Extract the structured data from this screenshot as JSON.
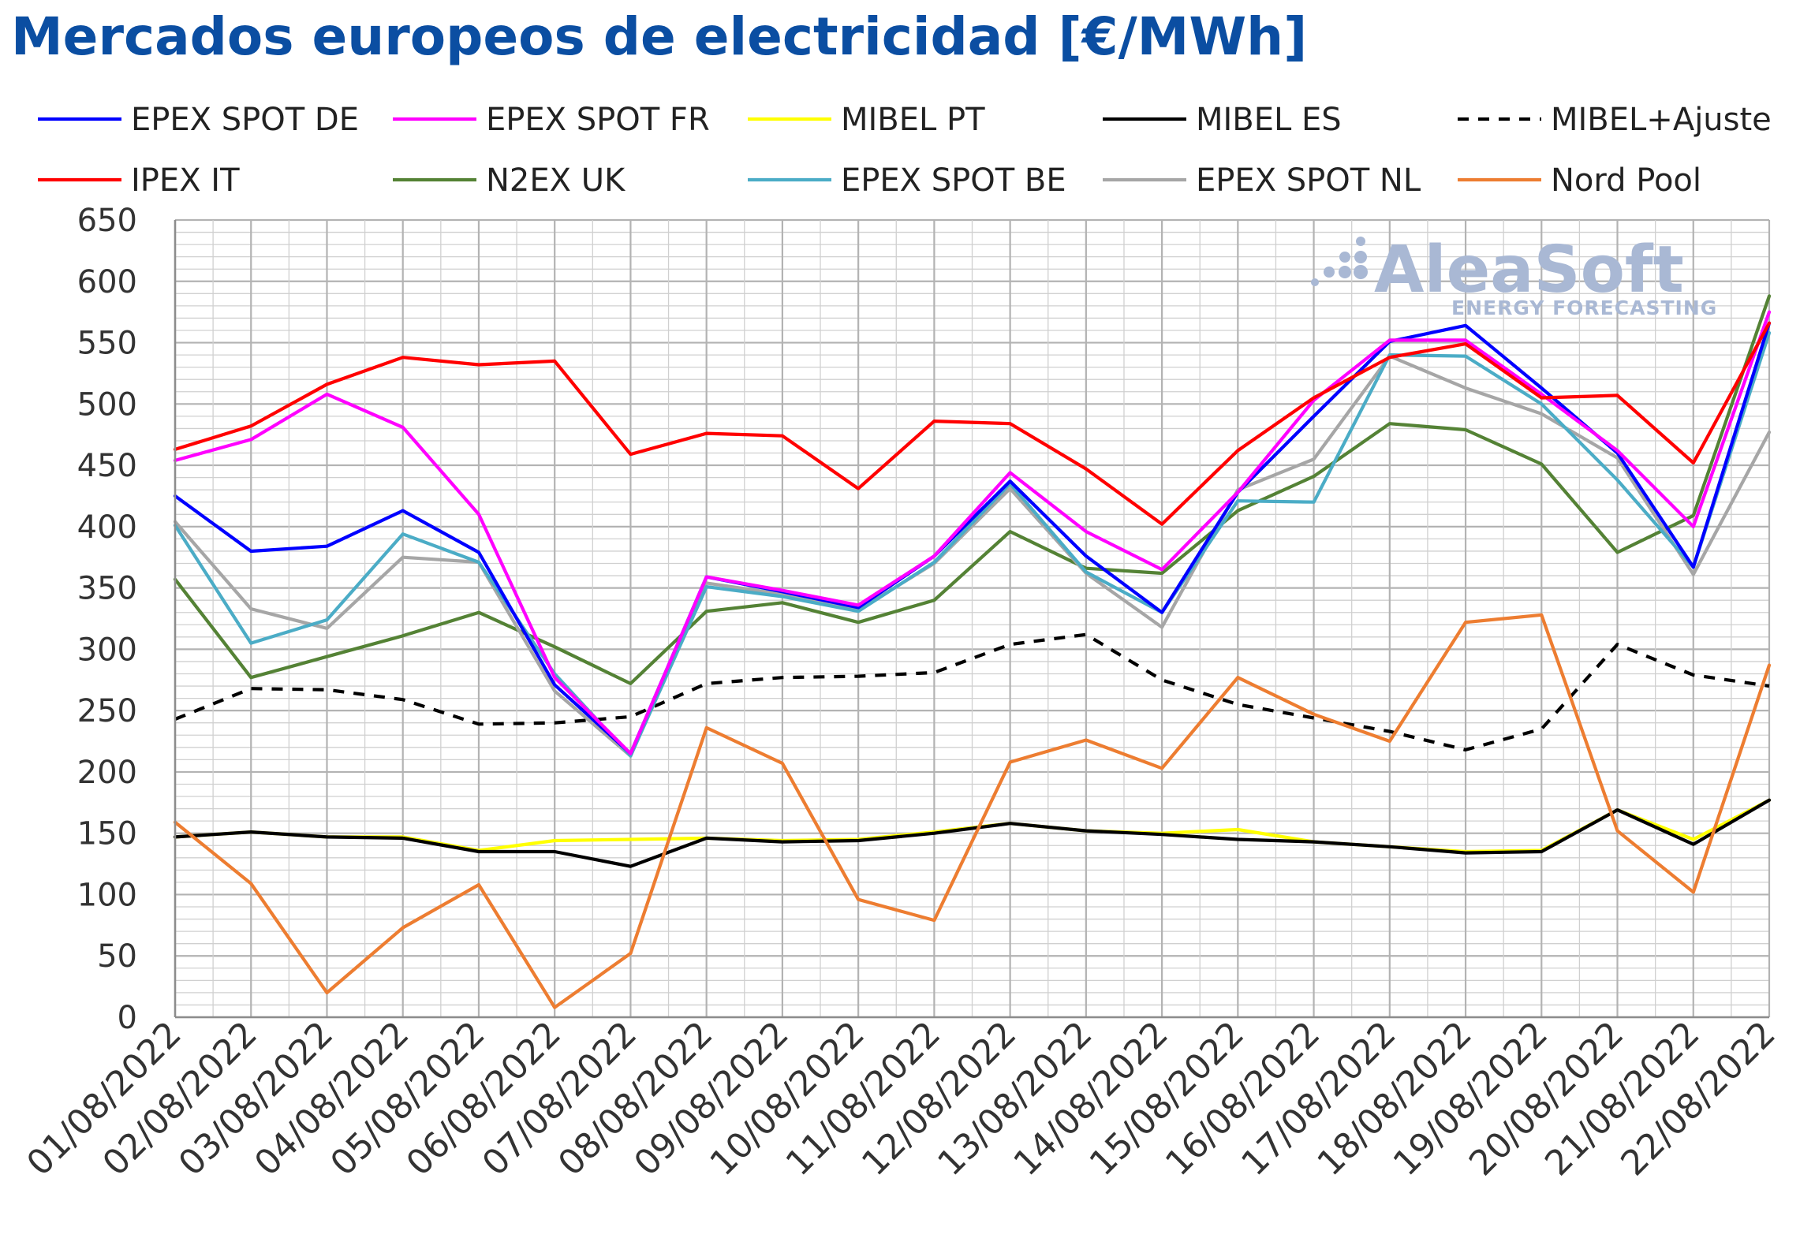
{
  "chart_data": {
    "type": "line",
    "title": "Mercados europeos de electricidad [€/MWh]",
    "xlabel": "",
    "ylabel": "",
    "ylim": [
      0,
      650
    ],
    "ytick_step": 50,
    "grid": true,
    "legend_position": "top",
    "categories": [
      "01/08/2022",
      "02/08/2022",
      "03/08/2022",
      "04/08/2022",
      "05/08/2022",
      "06/08/2022",
      "07/08/2022",
      "08/08/2022",
      "09/08/2022",
      "10/08/2022",
      "11/08/2022",
      "12/08/2022",
      "13/08/2022",
      "14/08/2022",
      "15/08/2022",
      "16/08/2022",
      "17/08/2022",
      "18/08/2022",
      "19/08/2022",
      "20/08/2022",
      "21/08/2022",
      "22/08/2022"
    ],
    "series": [
      {
        "name": "EPEX SPOT DE",
        "color": "#0000ff",
        "dash": false,
        "values": [
          425,
          380,
          384,
          413,
          379,
          271,
          215,
          359,
          347,
          334,
          376,
          437,
          376,
          330,
          428,
          490,
          551,
          564,
          513,
          460,
          367,
          566
        ]
      },
      {
        "name": "EPEX SPOT FR",
        "color": "#ff00ff",
        "dash": false,
        "values": [
          454,
          471,
          508,
          481,
          410,
          277,
          215,
          359,
          348,
          336,
          376,
          444,
          396,
          365,
          428,
          503,
          552,
          552,
          508,
          462,
          400,
          575
        ]
      },
      {
        "name": "MIBEL PT",
        "color": "#ffff00",
        "dash": false,
        "values": [
          147,
          151,
          147,
          147,
          136,
          144,
          145,
          146,
          144,
          145,
          151,
          158,
          152,
          150,
          153,
          143,
          139,
          135,
          136,
          169,
          145,
          177
        ]
      },
      {
        "name": "MIBEL ES",
        "color": "#000000",
        "dash": false,
        "values": [
          147,
          151,
          147,
          146,
          135,
          135,
          123,
          146,
          143,
          144,
          150,
          158,
          152,
          149,
          145,
          143,
          139,
          134,
          135,
          169,
          141,
          177
        ]
      },
      {
        "name": "MIBEL+Ajuste",
        "color": "#000000",
        "dash": true,
        "values": [
          243,
          268,
          267,
          259,
          239,
          240,
          245,
          272,
          277,
          278,
          281,
          304,
          312,
          275,
          255,
          244,
          233,
          218,
          235,
          304,
          279,
          270
        ]
      },
      {
        "name": "IPEX IT",
        "color": "#ff0000",
        "dash": false,
        "values": [
          463,
          482,
          516,
          538,
          532,
          535,
          459,
          476,
          474,
          431,
          486,
          484,
          447,
          402,
          462,
          505,
          538,
          549,
          505,
          507,
          452,
          566
        ]
      },
      {
        "name": "N2EX UK",
        "color": "#548235",
        "dash": false,
        "values": [
          357,
          277,
          294,
          311,
          330,
          302,
          272,
          331,
          338,
          322,
          340,
          396,
          366,
          362,
          413,
          441,
          484,
          479,
          451,
          379,
          409,
          588
        ]
      },
      {
        "name": "EPEX SPOT BE",
        "color": "#4bacc6",
        "dash": false,
        "values": [
          401,
          305,
          324,
          394,
          371,
          280,
          213,
          351,
          343,
          331,
          371,
          435,
          363,
          330,
          421,
          420,
          540,
          539,
          500,
          438,
          367,
          558
        ]
      },
      {
        "name": "EPEX SPOT NL",
        "color": "#a6a6a6",
        "dash": false,
        "values": [
          404,
          333,
          317,
          375,
          371,
          266,
          213,
          354,
          345,
          332,
          370,
          431,
          362,
          318,
          430,
          455,
          539,
          513,
          492,
          456,
          361,
          477
        ]
      },
      {
        "name": "Nord Pool",
        "color": "#ed7d31",
        "dash": false,
        "values": [
          159,
          109,
          20,
          73,
          108,
          8,
          52,
          236,
          207,
          96,
          79,
          208,
          226,
          203,
          277,
          247,
          225,
          322,
          328,
          152,
          102,
          287
        ]
      }
    ]
  },
  "watermark": {
    "brand": "AleaSoft",
    "tagline": "ENERGY FORECASTING"
  }
}
